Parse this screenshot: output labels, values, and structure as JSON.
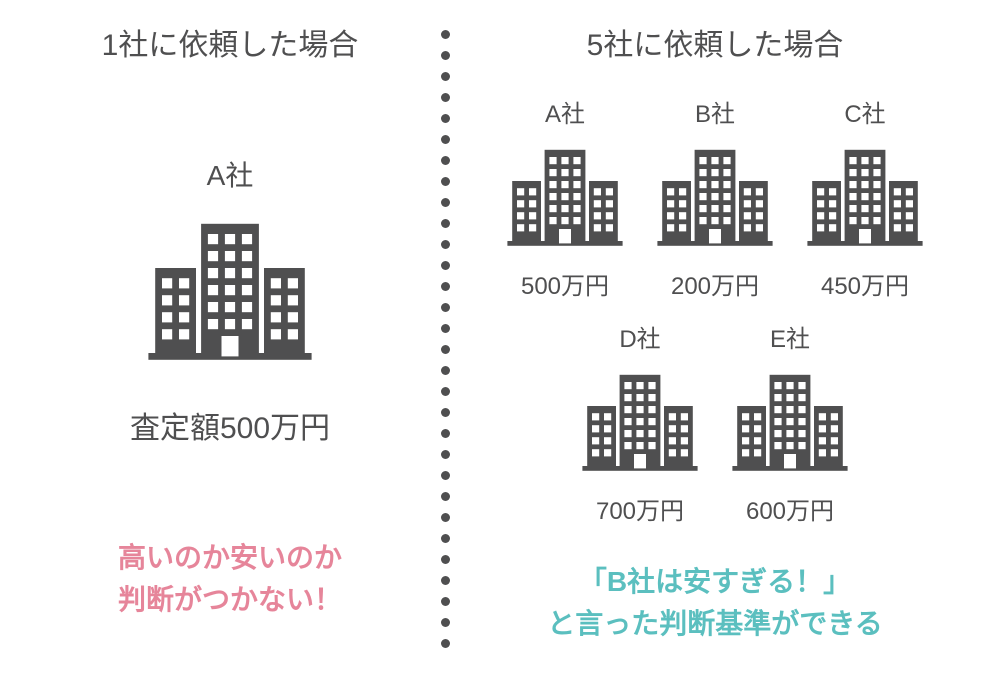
{
  "colors": {
    "text": "#4f4f50",
    "building": "#4f4f50",
    "pink": "#e6859a",
    "teal": "#5bbfbf",
    "bg": "#ffffff"
  },
  "divider": {
    "dot_count": 30
  },
  "left": {
    "title": "1社に依頼した場合",
    "company": {
      "label": "A社",
      "price": "査定額500万円"
    },
    "conclusion_line1": "高いのか安いのか",
    "conclusion_line2": "判断がつかない！"
  },
  "right": {
    "title": "5社に依頼した場合",
    "companies": [
      {
        "label": "A社",
        "price": "500万円"
      },
      {
        "label": "B社",
        "price": "200万円"
      },
      {
        "label": "C社",
        "price": "450万円"
      },
      {
        "label": "D社",
        "price": "700万円"
      },
      {
        "label": "E社",
        "price": "600万円"
      }
    ],
    "conclusion_line1": "「B社は安すぎる！」",
    "conclusion_line2": "と言った判断基準ができる"
  }
}
